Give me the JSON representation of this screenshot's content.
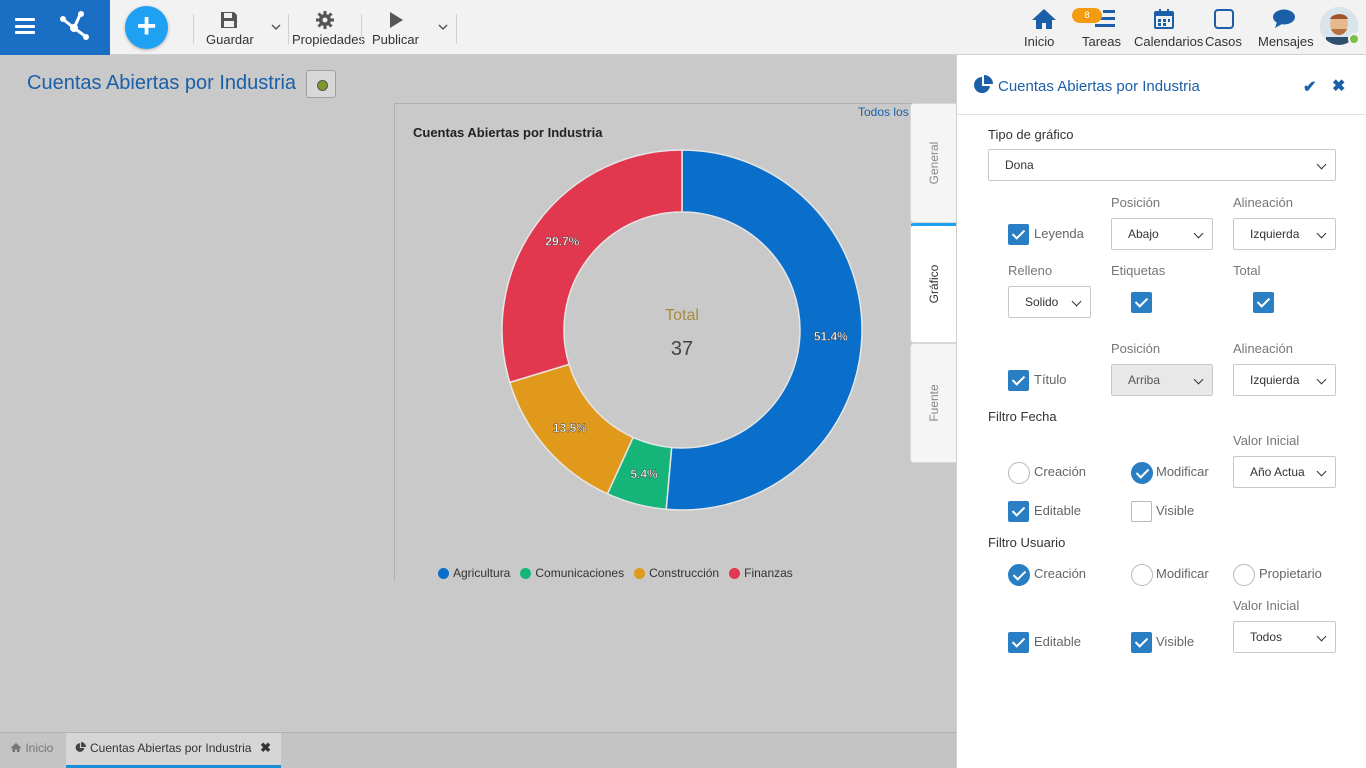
{
  "toolbar": {
    "save_label": "Guardar",
    "properties_label": "Propiedades",
    "publish_label": "Publicar"
  },
  "nav": {
    "home": "Inicio",
    "tasks": "Tareas",
    "tasks_badge": "8",
    "calendars": "Calendarios",
    "cases": "Casos",
    "messages": "Mensajes"
  },
  "page": {
    "title": "Cuentas Abiertas por Industria",
    "todos_link": "Todos los"
  },
  "chart_data": {
    "type": "pie",
    "variant": "donut",
    "title": "Cuentas Abiertas por Industria",
    "total_label": "Total",
    "total_value": "37",
    "categories": [
      "Agricultura",
      "Comunicaciones",
      "Construcción",
      "Finanzas"
    ],
    "values": [
      51.4,
      5.4,
      13.5,
      29.7
    ],
    "labels": [
      "51.4%",
      "5.4%",
      "13.5%",
      "29.7%"
    ],
    "colors": [
      "#0a6fca",
      "#15b57a",
      "#e0991a",
      "#e2384f"
    ],
    "legend_position": "bottom"
  },
  "side_tabs": {
    "general": "General",
    "grafico": "Gráfico",
    "fuente": "Fuente"
  },
  "panel": {
    "title": "Cuentas Abiertas por Industria",
    "chart_type_label": "Tipo de gráfico",
    "chart_type_value": "Dona",
    "position_label": "Posición",
    "alignment_label": "Alineación",
    "legend_label": "Leyenda",
    "legend_position": "Abajo",
    "legend_alignment": "Izquierda",
    "fill_label": "Relleno",
    "fill_value": "Solido",
    "tags_label": "Etiquetas",
    "total_label": "Total",
    "position2_label": "Posición",
    "alignment2_label": "Alineación",
    "title_label": "Título",
    "title_position": "Arriba",
    "title_alignment": "Izquierda",
    "date_filter_label": "Filtro Fecha",
    "initial_value_label": "Valor Inicial",
    "creation_label": "Creación",
    "modify_label": "Modificar",
    "date_initial_value": "Año Actua",
    "editable_label": "Editable",
    "visible_label": "Visible",
    "user_filter_label": "Filtro Usuario",
    "creation2_label": "Creación",
    "modify2_label": "Modificar",
    "owner_label": "Propietario",
    "initial_value2_label": "Valor Inicial",
    "editable2_label": "Editable",
    "visible2_label": "Visible",
    "user_initial_value": "Todos"
  },
  "bottom_tabs": {
    "home": "Inicio",
    "doc": "Cuentas Abiertas por Industria"
  }
}
